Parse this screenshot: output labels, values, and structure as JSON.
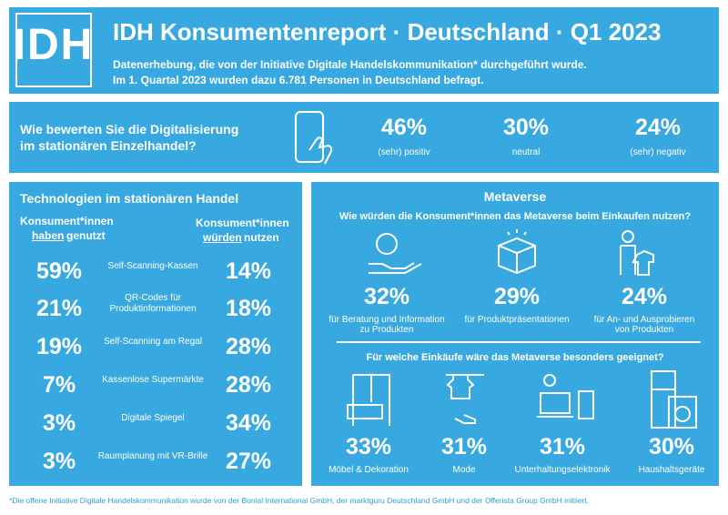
{
  "header": {
    "logo": "IDH",
    "title": "IDH Konsumentenreport · Deutschland · Q1 2023",
    "subtitle": [
      "Datenerhebung, die von der Initiative Digitale Handelskommunikation* durchgeführt wurde.",
      "Im 1. Quartal 2023 wurden dazu 6.781 Personen in Deutschland befragt."
    ]
  },
  "digitalization": {
    "question": [
      "Wie bewerten Sie die Digitalisierung",
      "im stationären Einzelhandel?"
    ],
    "stats": [
      {
        "value": "46%",
        "label": "(sehr) positiv"
      },
      {
        "value": "30%",
        "label": "neutral"
      },
      {
        "value": "24%",
        "label": "(sehr) negativ"
      }
    ]
  },
  "technologies": {
    "title": "Technologien im stationären Handel",
    "left_header": {
      "line1": "Konsument*innen",
      "underlined": "haben",
      "rest": "genutzt"
    },
    "right_header": {
      "line1": "Konsument*innen",
      "underlined": "würden",
      "rest": "nutzen"
    },
    "rows": [
      {
        "used": "59%",
        "name": [
          "Self-Scanning-Kassen"
        ],
        "would": "14%"
      },
      {
        "used": "21%",
        "name": [
          "QR-Codes für",
          "Produktinformationen"
        ],
        "would": "18%"
      },
      {
        "used": "19%",
        "name": [
          "Self-Scanning am Regal"
        ],
        "would": "28%"
      },
      {
        "used": "7%",
        "name": [
          "Kassenlose Supermärkte"
        ],
        "would": "28%"
      },
      {
        "used": "3%",
        "name": [
          "Digitale Spiegel"
        ],
        "would": "34%"
      },
      {
        "used": "3%",
        "name": [
          "Raumplanung mit VR-Brille"
        ],
        "would": "27%"
      }
    ]
  },
  "metaverse": {
    "title": "Metaverse",
    "question": "Wie würden die Konsument*innen das Metaverse beim Einkaufen nutzen?",
    "uses": [
      {
        "value": "32%",
        "label": [
          "für Beratung und Information",
          "zu Produkten"
        ]
      },
      {
        "value": "29%",
        "label": [
          "für Produktpräsentationen"
        ]
      },
      {
        "value": "24%",
        "label": [
          "für An- und Ausprobieren",
          "von Produkten"
        ]
      }
    ],
    "question2": "Für welche Einkäufe wäre das Metaverse besonders geeignet?",
    "purchases": [
      {
        "value": "33%",
        "label": "Möbel & Dekoration"
      },
      {
        "value": "31%",
        "label": "Mode"
      },
      {
        "value": "31%",
        "label": "Unterhaltungselektronik"
      },
      {
        "value": "30%",
        "label": "Haushaltsgeräte"
      }
    ]
  },
  "footnote": "*Die offene Initiative Digitale Handelskommunikation wurde von der Bonial International GmbH, der marktguru Deutschland GmbH und der Offerista Group GmbH initiiert."
}
